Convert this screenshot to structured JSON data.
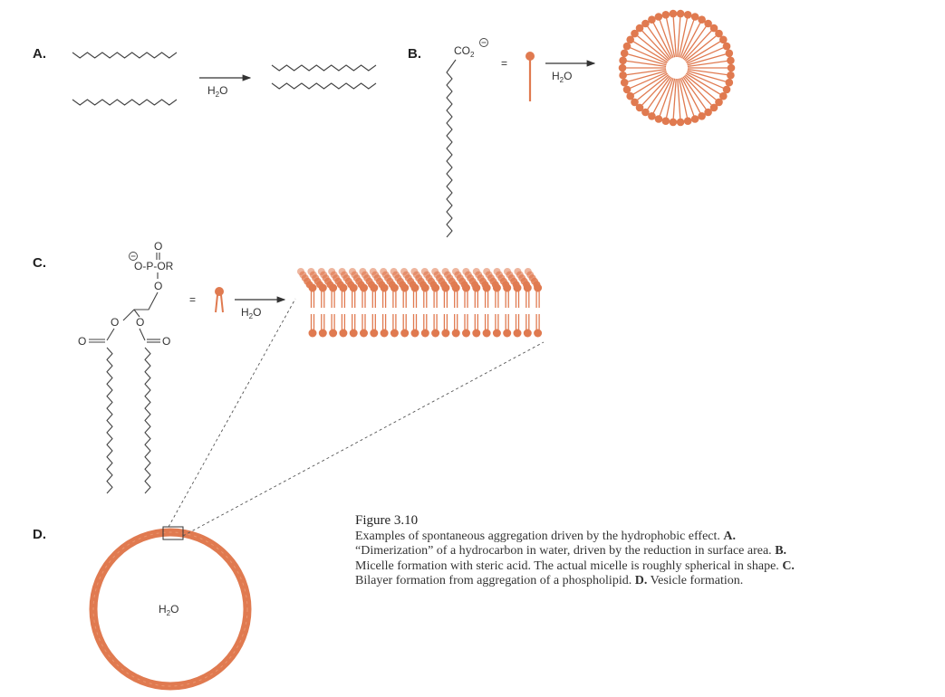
{
  "panels": {
    "a": {
      "label": "A.",
      "reagent_base": "H",
      "reagent_sub": "2",
      "reagent_tail": "O"
    },
    "b": {
      "label": "B.",
      "group_base": "CO",
      "group_sub": "2",
      "equals": "=",
      "reagent_base": "H",
      "reagent_sub": "2",
      "reagent_tail": "O"
    },
    "c": {
      "label": "C.",
      "phosphate_top_O": "O",
      "phosphate_line": "O-P-OR",
      "phosphate_bridge_O": "O",
      "ester_O_left": "O",
      "ester_O_right": "O",
      "carbonyl_left": "O",
      "carbonyl_right": "O",
      "equals": "=",
      "reagent_base": "H",
      "reagent_sub": "2",
      "reagent_tail": "O"
    },
    "d": {
      "label": "D.",
      "interior_base": "H",
      "interior_sub": "2",
      "interior_tail": "O"
    }
  },
  "caption": {
    "title": "Figure 3.10",
    "intro": "Examples of spontaneous aggregation driven by the hydrophobic effect.",
    "a_label": "A.",
    "a_text": " “Dimerization” of a hydrocarbon in water, driven by the reduction in surface area. ",
    "b_label": "B.",
    "b_text": " Micelle formation with steric acid. The actual micelle is roughly spherical in shape. ",
    "c_label": "C.",
    "c_text": " Bilayer formation from aggregation of a phospholipid. ",
    "d_label": "D.",
    "d_text": " Vesicle formation."
  },
  "colors": {
    "lipid_orange": "#e07a50",
    "line": "#444444"
  },
  "icons": [
    "reaction-arrow-icon",
    "lipid-head-icon"
  ]
}
